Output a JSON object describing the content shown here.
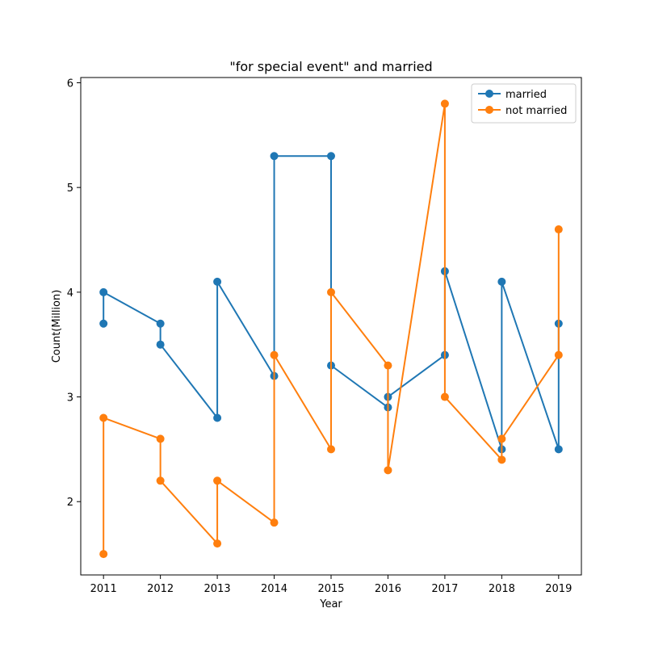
{
  "chart_data": {
    "type": "line",
    "title": "\"for special event\" and married",
    "xlabel": "Year",
    "ylabel": "Count(Million)",
    "xlim": [
      2010.6,
      2019.4
    ],
    "ylim": [
      1.3,
      6.05
    ],
    "x_ticks": [
      2011,
      2012,
      2013,
      2014,
      2015,
      2016,
      2017,
      2018,
      2019
    ],
    "y_ticks": [
      2,
      3,
      4,
      5,
      6
    ],
    "grid": false,
    "legend_position": "top-right",
    "series": [
      {
        "name": "married",
        "color": "#1f77b4",
        "points": [
          [
            2011,
            3.7
          ],
          [
            2011,
            4.0
          ],
          [
            2012,
            3.7
          ],
          [
            2012,
            3.5
          ],
          [
            2013,
            2.8
          ],
          [
            2013,
            4.1
          ],
          [
            2014,
            3.2
          ],
          [
            2014,
            5.3
          ],
          [
            2015,
            5.3
          ],
          [
            2015,
            3.3
          ],
          [
            2016,
            2.9
          ],
          [
            2016,
            3.0
          ],
          [
            2017,
            3.4
          ],
          [
            2017,
            4.2
          ],
          [
            2018,
            2.5
          ],
          [
            2018,
            4.1
          ],
          [
            2019,
            2.5
          ],
          [
            2019,
            3.7
          ]
        ]
      },
      {
        "name": "not married",
        "color": "#ff7f0e",
        "points": [
          [
            2011,
            1.5
          ],
          [
            2011,
            2.8
          ],
          [
            2012,
            2.6
          ],
          [
            2012,
            2.2
          ],
          [
            2013,
            1.6
          ],
          [
            2013,
            2.2
          ],
          [
            2014,
            1.8
          ],
          [
            2014,
            3.4
          ],
          [
            2015,
            2.5
          ],
          [
            2015,
            4.0
          ],
          [
            2016,
            3.3
          ],
          [
            2016,
            2.3
          ],
          [
            2017,
            5.8
          ],
          [
            2017,
            3.0
          ],
          [
            2018,
            2.4
          ],
          [
            2018,
            2.6
          ],
          [
            2019,
            3.4
          ],
          [
            2019,
            4.6
          ]
        ]
      }
    ]
  }
}
